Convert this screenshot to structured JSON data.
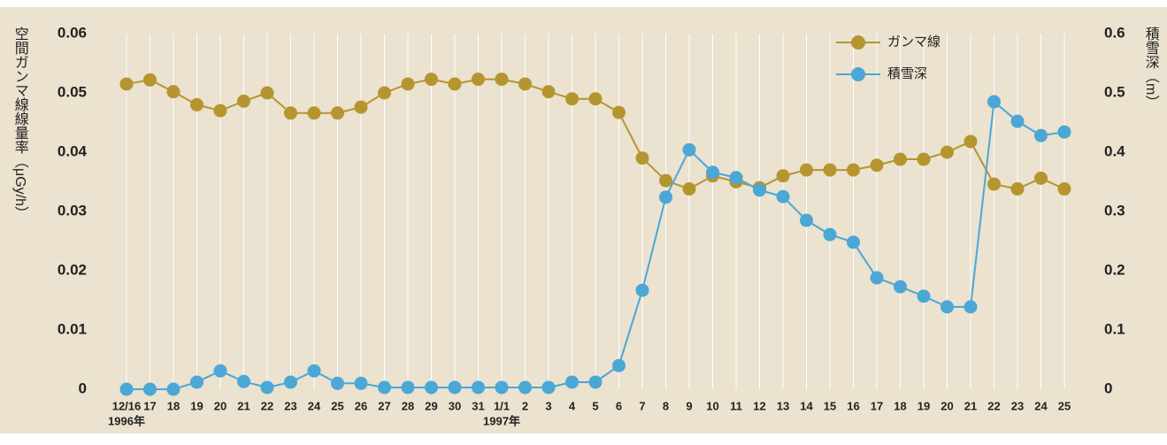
{
  "chart_data": {
    "type": "line",
    "y_label": "空間ガンマ線線量率（μGy/h）",
    "y2_label": "積雪深（m）",
    "categories": [
      "12/16",
      "17",
      "18",
      "19",
      "20",
      "21",
      "22",
      "23",
      "24",
      "25",
      "26",
      "27",
      "28",
      "29",
      "30",
      "31",
      "1/1",
      "2",
      "3",
      "4",
      "5",
      "6",
      "7",
      "8",
      "9",
      "10",
      "11",
      "12",
      "13",
      "14",
      "15",
      "16",
      "17",
      "18",
      "19",
      "20",
      "21",
      "22",
      "23",
      "24",
      "25"
    ],
    "category_sublabels": [
      "1996年",
      null,
      null,
      null,
      null,
      null,
      null,
      null,
      null,
      null,
      null,
      null,
      null,
      null,
      null,
      null,
      "1997年",
      null,
      null,
      null,
      null,
      null,
      null,
      null,
      null,
      null,
      null,
      null,
      null,
      null,
      null,
      null,
      null,
      null,
      null,
      null,
      null,
      null,
      null,
      null,
      null
    ],
    "series": [
      {
        "name": "ガンマ線",
        "color": "#b5952f",
        "values": [
          0.0515,
          0.0522,
          0.0502,
          0.048,
          0.047,
          0.0486,
          0.05,
          0.0466,
          0.0466,
          0.0466,
          0.0476,
          0.05,
          0.0515,
          0.0523,
          0.0515,
          0.0523,
          0.0523,
          0.0515,
          0.0502,
          0.049,
          0.049,
          0.0467,
          0.039,
          0.0352,
          0.0338,
          0.036,
          0.035,
          0.034,
          0.036,
          0.037,
          0.037,
          0.037,
          0.0378,
          0.0388,
          0.0388,
          0.04,
          0.0418,
          0.0346,
          0.0338,
          0.0356,
          0.0338
        ]
      },
      {
        "name": "積雪深",
        "color": "#4aa7d6",
        "axis": "y2",
        "values": [
          0,
          0,
          0,
          0.012,
          0.031,
          0.013,
          0.003,
          0.012,
          0.031,
          0.01,
          0.01,
          0.003,
          0.003,
          0.003,
          0.003,
          0.003,
          0.003,
          0.003,
          0.003,
          0.012,
          0.012,
          0.04,
          0.167,
          0.324,
          0.404,
          0.366,
          0.357,
          0.336,
          0.325,
          0.285,
          0.261,
          0.248,
          0.188,
          0.173,
          0.157,
          0.139,
          0.139,
          0.485,
          0.452,
          0.428,
          0.434
        ]
      }
    ],
    "ylim": [
      0,
      0.06
    ],
    "yticks": [
      0,
      0.01,
      0.02,
      0.03,
      0.04,
      0.05,
      0.06
    ],
    "y2lim": [
      0,
      0.6
    ],
    "y2ticks": [
      0,
      0.1,
      0.2,
      0.3,
      0.4,
      0.5,
      0.6
    ],
    "legend": "top-right",
    "grid": "vertical"
  }
}
